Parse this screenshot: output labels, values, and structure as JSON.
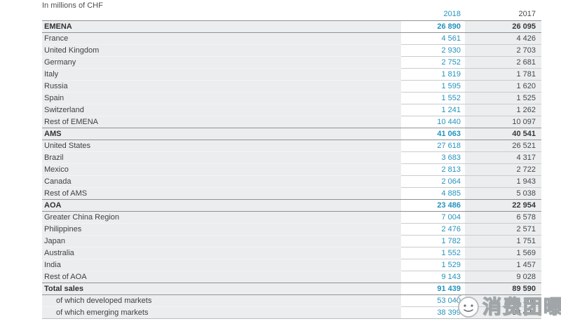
{
  "chart_data": {
    "type": "table",
    "unit_note": "In millions of CHF",
    "columns": [
      "2018",
      "2017"
    ],
    "number_grouping": "space",
    "rows": [
      {
        "label": "EMENA",
        "values": [
          26890,
          26095
        ],
        "style": "section"
      },
      {
        "label": "France",
        "values": [
          4561,
          4426
        ],
        "style": "item"
      },
      {
        "label": "United Kingdom",
        "values": [
          2930,
          2703
        ],
        "style": "item"
      },
      {
        "label": "Germany",
        "values": [
          2752,
          2681
        ],
        "style": "item"
      },
      {
        "label": "Italy",
        "values": [
          1819,
          1781
        ],
        "style": "item"
      },
      {
        "label": "Russia",
        "values": [
          1595,
          1620
        ],
        "style": "item"
      },
      {
        "label": "Spain",
        "values": [
          1552,
          1525
        ],
        "style": "item"
      },
      {
        "label": "Switzerland",
        "values": [
          1241,
          1262
        ],
        "style": "item"
      },
      {
        "label": "Rest of EMENA",
        "values": [
          10440,
          10097
        ],
        "style": "item"
      },
      {
        "label": "AMS",
        "values": [
          41063,
          40541
        ],
        "style": "section"
      },
      {
        "label": "United States",
        "values": [
          27618,
          26521
        ],
        "style": "item"
      },
      {
        "label": "Brazil",
        "values": [
          3683,
          4317
        ],
        "style": "item"
      },
      {
        "label": "Mexico",
        "values": [
          2813,
          2722
        ],
        "style": "item"
      },
      {
        "label": "Canada",
        "values": [
          2064,
          1943
        ],
        "style": "item"
      },
      {
        "label": "Rest of AMS",
        "values": [
          4885,
          5038
        ],
        "style": "item"
      },
      {
        "label": "AOA",
        "values": [
          23486,
          22954
        ],
        "style": "section"
      },
      {
        "label": "Greater China Region",
        "values": [
          7004,
          6578
        ],
        "style": "item"
      },
      {
        "label": "Philippines",
        "values": [
          2476,
          2571
        ],
        "style": "item"
      },
      {
        "label": "Japan",
        "values": [
          1782,
          1751
        ],
        "style": "item"
      },
      {
        "label": "Australia",
        "values": [
          1552,
          1569
        ],
        "style": "item"
      },
      {
        "label": "India",
        "values": [
          1529,
          1457
        ],
        "style": "item"
      },
      {
        "label": "Rest of AOA",
        "values": [
          9143,
          9028
        ],
        "style": "item"
      },
      {
        "label": "Total sales",
        "values": [
          91439,
          89590
        ],
        "style": "section"
      },
      {
        "label": "of which developed markets",
        "values": [
          53040,
          51168
        ],
        "style": "subitem"
      },
      {
        "label": "of which emerging markets",
        "values": [
          38399,
          38422
        ],
        "style": "subitem"
      }
    ]
  },
  "watermark": {
    "text": "消费团曝",
    "icon": "smiley-face-icon"
  },
  "colors": {
    "accent_2018": "#2492BE",
    "text_2017": "#43484A",
    "row_background": "#ECEDEE",
    "highlight_column_background": "#FFFFFF",
    "section_border": "#8F9396"
  }
}
